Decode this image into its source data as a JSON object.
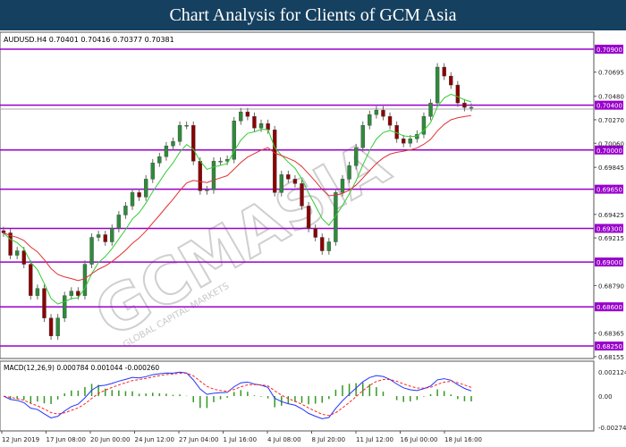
{
  "title": "Chart Analysis for Clients of GCM Asia",
  "watermark": {
    "logo": "GCMASIA",
    "tagline": "GLOBAL CAPITAL MARKETS"
  },
  "colors": {
    "level_line": "#9900cc",
    "bull": "#2e8b3a",
    "bear": "#8b0000",
    "ma_fast": "#33cc33",
    "ma_slow": "#e03030",
    "macd_line": "#2233ff",
    "signal_line": "#ff2222",
    "histogram": "#339922",
    "title_bg": "#16405f"
  },
  "chart_data": [
    {
      "type": "candlestick",
      "symbol_header": "AUDUSD.H4  0.70401 0.70416 0.70377 0.70381",
      "ylim": [
        0.68155,
        0.7112
      ],
      "y_ticks": [
        "0.70695",
        "0.70480",
        "0.70270",
        "0.70060",
        "0.69845",
        "0.69425",
        "0.69215",
        "0.68790",
        "0.68365",
        "0.68155"
      ],
      "levels": [
        "0.70900",
        "0.70400",
        "0.70000",
        "0.69650",
        "0.69300",
        "0.69000",
        "0.68600",
        "0.68250"
      ],
      "current_price": 0.70381,
      "x_ticks": [
        "12 Jun 2019",
        "17 Jun 08:00",
        "20 Jun 00:00",
        "24 Jun 12:00",
        "27 Jun 04:00",
        "1 Jul 16:00",
        "4 Jul 08:00",
        "8 Jul 20:00",
        "11 Jul 12:00",
        "16 Jul 00:00",
        "18 Jul 16:00"
      ],
      "closes": [
        0.6926,
        0.6906,
        0.691,
        0.6898,
        0.687,
        0.68764,
        0.685,
        0.6834,
        0.685,
        0.687,
        0.6874,
        0.687,
        0.6898,
        0.6922,
        0.69244,
        0.6918,
        0.693,
        0.6942,
        0.695,
        0.6962,
        0.6958,
        0.6974,
        0.69884,
        0.6994,
        0.70036,
        0.70076,
        0.7022,
        0.7022,
        0.699,
        0.69636,
        0.69644,
        0.699,
        0.699,
        0.69916,
        0.7026,
        0.7034,
        0.703,
        0.70196,
        0.70236,
        0.7018,
        0.6962,
        0.6978,
        0.6974,
        0.697,
        0.695,
        0.693,
        0.6922,
        0.691,
        0.6918,
        0.6962,
        0.6974,
        0.6986,
        0.7002,
        0.7022,
        0.70316,
        0.70356,
        0.703,
        0.7022,
        0.701,
        0.7006,
        0.701,
        0.7014,
        0.703,
        0.7042,
        0.7074,
        0.7066,
        0.7058,
        0.7042,
        0.7038,
        0.70381
      ]
    },
    {
      "type": "macd",
      "header": "MACD(12,26,9) 0.000784 0.001044 -0.000260",
      "ylim": [
        -0.002743,
        0.002124
      ],
      "y_ticks": [
        "0.002124",
        "0.00",
        "-0.002743"
      ]
    }
  ]
}
